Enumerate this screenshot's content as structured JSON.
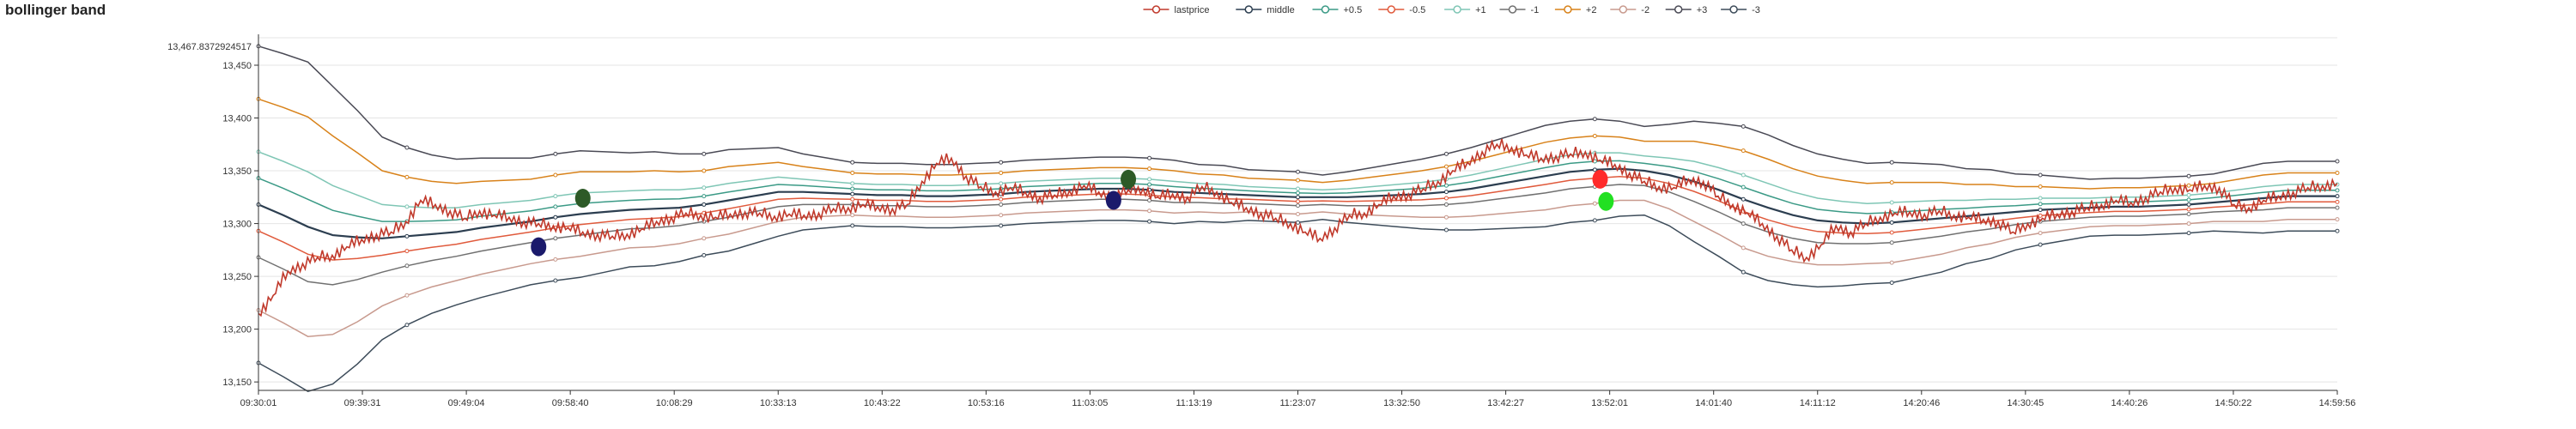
{
  "chart_data": {
    "type": "line",
    "title": "bollinger band",
    "xlabel": "",
    "ylabel": "",
    "ylim": [
      13142,
      13476
    ],
    "ymax_label": "13,467.8372924517",
    "yticks": [
      "13,150",
      "13,200",
      "13,250",
      "13,300",
      "13,350",
      "13,400",
      "13,450"
    ],
    "ytick_values": [
      13150,
      13200,
      13250,
      13300,
      13350,
      13400,
      13450
    ],
    "x_ticks": [
      "09:30:01",
      "09:39:31",
      "09:49:04",
      "09:58:40",
      "10:08:29",
      "10:33:13",
      "10:43:22",
      "10:53:16",
      "11:03:05",
      "11:13:19",
      "11:23:07",
      "13:32:50",
      "13:42:27",
      "13:52:01",
      "14:01:40",
      "14:11:12",
      "14:20:46",
      "14:30:45",
      "14:40:26",
      "14:50:22",
      "14:59:56"
    ],
    "grid": "horizontal",
    "legend": "top-center",
    "middle": [
      13318,
      13308,
      13297,
      13289,
      13287,
      13286,
      13288,
      13290,
      13292,
      13296,
      13299,
      13302,
      13306,
      13309,
      13311,
      13313,
      13314,
      13315,
      13318,
      13322,
      13326,
      13330,
      13330,
      13329,
      13328,
      13327,
      13327,
      13326,
      13326,
      13327,
      13328,
      13330,
      13331,
      13332,
      13333,
      13333,
      13332,
      13330,
      13329,
      13328,
      13327,
      13326,
      13325,
      13325,
      13325,
      13326,
      13327,
      13328,
      13330,
      13333,
      13337,
      13341,
      13345,
      13349,
      13351,
      13352,
      13350,
      13346,
      13340,
      13332,
      13323,
      13315,
      13308,
      13303,
      13301,
      13300,
      13301,
      13303,
      13305,
      13307,
      13309,
      13311,
      13313,
      13314,
      13315,
      13316,
      13316,
      13317,
      13318,
      13320,
      13322,
      13324,
      13326,
      13326,
      13326
    ],
    "std": [
      50,
      51,
      52,
      47,
      40,
      32,
      28,
      25,
      23,
      22,
      21,
      20,
      20,
      20,
      19,
      18,
      18,
      17,
      16,
      16,
      15,
      14,
      12,
      11,
      10,
      10,
      10,
      10,
      10,
      10,
      10,
      10,
      10,
      10,
      10,
      10,
      10,
      10,
      9,
      9,
      8,
      8,
      8,
      7,
      8,
      9,
      10,
      11,
      12,
      13,
      14,
      15,
      16,
      16,
      16,
      15,
      14,
      16,
      19,
      21,
      23,
      23,
      22,
      21,
      20,
      19,
      19,
      18,
      17,
      15,
      14,
      12,
      11,
      10,
      9,
      9,
      9,
      9,
      9,
      9,
      10,
      11,
      11,
      11,
      11
    ],
    "price": [
      13215,
      13232,
      13255,
      13262,
      13268,
      13270,
      13278,
      13285,
      13290,
      13292,
      13302,
      13322,
      13318,
      13312,
      13305,
      13312,
      13308,
      13306,
      13302,
      13300,
      13298,
      13296,
      13292,
      13290,
      13288,
      13290,
      13295,
      13302,
      13306,
      13310,
      13308,
      13306,
      13309,
      13311,
      13310,
      13307,
      13309,
      13308,
      13310,
      13314,
      13315,
      13318,
      13316,
      13314,
      13318,
      13340,
      13357,
      13362,
      13345,
      13335,
      13330,
      13334,
      13330,
      13325,
      13327,
      13331,
      13336,
      13330,
      13325,
      13332,
      13333,
      13325,
      13328,
      13325,
      13335,
      13330,
      13320,
      13315,
      13310,
      13305,
      13300,
      13292,
      13286,
      13296,
      13308,
      13310,
      13318,
      13326,
      13328,
      13333,
      13340,
      13350,
      13358,
      13368,
      13375,
      13372,
      13365,
      13362,
      13364,
      13366,
      13368,
      13360,
      13356,
      13348,
      13340,
      13335,
      13334,
      13342,
      13340,
      13326,
      13318,
      13310,
      13300,
      13288,
      13275,
      13268,
      13280,
      13298,
      13292,
      13300,
      13306,
      13310,
      13311,
      13309,
      13312,
      13308,
      13306,
      13304,
      13302,
      13292,
      13300,
      13305,
      13309,
      13312,
      13315,
      13318,
      13322,
      13320,
      13325,
      13330,
      13334,
      13332,
      13336,
      13334,
      13318,
      13315,
      13322,
      13326,
      13330,
      13334,
      13336,
      13338
    ],
    "price_range": [
      0,
      140
    ],
    "markers": [
      {
        "name": "dark-blue",
        "color": "#1b1a6b",
        "i": 19,
        "v": 13278
      },
      {
        "name": "dark-green",
        "color": "#2d5a27",
        "i": 22,
        "v": 13324
      },
      {
        "name": "dark-blue",
        "color": "#1b1a6b",
        "i": 58,
        "v": 13322
      },
      {
        "name": "dark-green",
        "color": "#2d5a27",
        "i": 59,
        "v": 13342
      },
      {
        "name": "red",
        "color": "#ff2b2b",
        "i": 91,
        "v": 13342
      },
      {
        "name": "green",
        "color": "#22e022",
        "i": 91.4,
        "v": 13321
      }
    ],
    "series": [
      {
        "name": "lastprice",
        "color": "#c0392b"
      },
      {
        "name": "middle",
        "color": "#2c3e50",
        "k": 0
      },
      {
        "name": "+0.5",
        "color": "#3b9a86",
        "k": 0.5
      },
      {
        "name": "-0.5",
        "color": "#e05a3c",
        "k": -0.5
      },
      {
        "name": "+1",
        "color": "#7fc6b5",
        "k": 1
      },
      {
        "name": "-1",
        "color": "#707070",
        "k": -1
      },
      {
        "name": "+2",
        "color": "#d8821a",
        "k": 2
      },
      {
        "name": "-2",
        "color": "#c89a8e",
        "k": -2
      },
      {
        "name": "+3",
        "color": "#4a4a55",
        "k": 3
      },
      {
        "name": "-3",
        "color": "#3d4c5a",
        "k": -3
      }
    ]
  }
}
